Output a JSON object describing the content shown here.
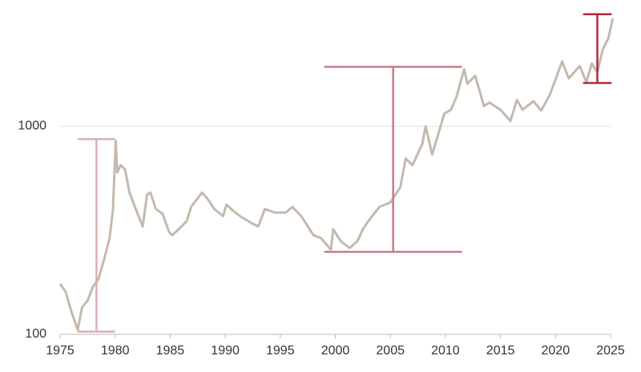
{
  "chart_data": {
    "type": "line",
    "x": [
      1975.0,
      1975.5,
      1976.0,
      1976.6,
      1977.0,
      1977.5,
      1978.0,
      1978.5,
      1979.0,
      1979.5,
      1979.8,
      1980.05,
      1980.2,
      1980.5,
      1980.9,
      1981.3,
      1981.8,
      1982.5,
      1982.9,
      1983.2,
      1983.7,
      1984.3,
      1984.9,
      1985.2,
      1985.9,
      1986.5,
      1986.9,
      1987.9,
      1988.5,
      1989.0,
      1989.8,
      1990.1,
      1990.9,
      1991.5,
      1992.5,
      1993.0,
      1993.6,
      1994.5,
      1995.5,
      1996.1,
      1996.9,
      1997.5,
      1998.0,
      1998.7,
      1999.6,
      1999.8,
      2000.5,
      2001.3,
      2002.0,
      2002.5,
      2003.0,
      2004.0,
      2005.0,
      2005.9,
      2006.4,
      2007.0,
      2007.9,
      2008.2,
      2008.8,
      2009.9,
      2010.5,
      2011.0,
      2011.7,
      2012.0,
      2012.7,
      2013.5,
      2014.0,
      2015.0,
      2015.9,
      2016.5,
      2017.0,
      2018.0,
      2018.7,
      2019.5,
      2020.6,
      2021.2,
      2022.2,
      2022.8,
      2023.3,
      2023.8,
      2024.3,
      2024.8,
      2025.2
    ],
    "values": [
      175,
      160,
      130,
      105,
      135,
      145,
      170,
      185,
      230,
      290,
      400,
      850,
      600,
      650,
      620,
      480,
      410,
      330,
      470,
      480,
      400,
      380,
      310,
      300,
      325,
      350,
      410,
      480,
      440,
      400,
      370,
      420,
      385,
      365,
      340,
      330,
      400,
      385,
      385,
      410,
      370,
      330,
      300,
      290,
      255,
      320,
      280,
      260,
      280,
      320,
      350,
      410,
      430,
      510,
      700,
      650,
      820,
      1000,
      730,
      1150,
      1200,
      1380,
      1880,
      1600,
      1750,
      1250,
      1300,
      1200,
      1060,
      1340,
      1200,
      1320,
      1190,
      1420,
      2050,
      1700,
      1950,
      1630,
      2000,
      1820,
      2350,
      2650,
      3300
    ],
    "color": "#c4b9ad",
    "ranges": [
      {
        "start": 1976.6,
        "end": 1980.0,
        "low": 103,
        "high": 867,
        "color": "#dcaeb3"
      },
      {
        "start": 1999.0,
        "end": 2011.5,
        "low": 249,
        "high": 1930,
        "color": "#c97b87"
      },
      {
        "start": 2022.5,
        "end": 2025.1,
        "low": 1615,
        "high": 3455,
        "color": "#b1283a"
      }
    ],
    "xlim": [
      1975,
      2025
    ],
    "xticks": [
      1975,
      1980,
      1985,
      1990,
      1995,
      2000,
      2005,
      2010,
      2015,
      2020,
      2025
    ],
    "ylim": [
      100,
      3700
    ],
    "yticks": [
      100,
      1000
    ],
    "log_scale": true,
    "grid": true
  }
}
